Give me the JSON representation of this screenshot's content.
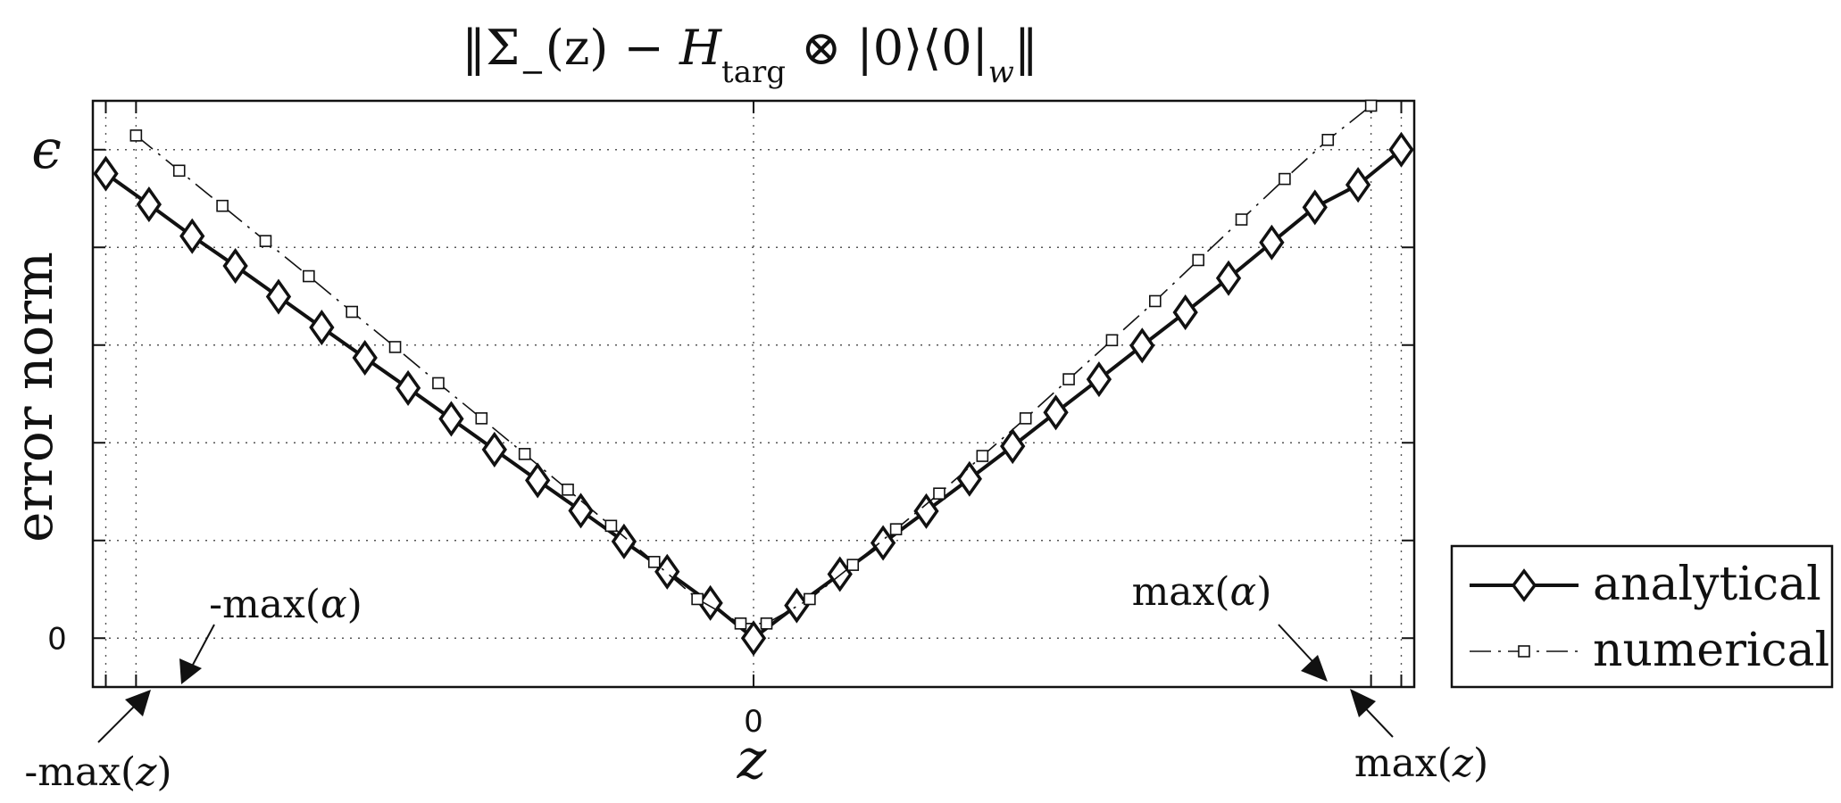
{
  "chart_data": {
    "type": "line",
    "title": "‖Σ₋(z) − H_targ ⊗ |0⟩⟨0|_w‖",
    "title_parts": {
      "open": "‖Σ",
      "sub_minus": "−",
      "arg": "(z) − ",
      "H": "H",
      "sub_targ": "targ",
      "rest": " ⊗ |0⟩⟨0|",
      "sub_w": "w",
      "close": "‖"
    },
    "xlabel": "z",
    "ylabel": "error norm",
    "xlim": [
      -15.3,
      15.3
    ],
    "ylim": [
      -0.1,
      1.1
    ],
    "grid": true,
    "x_ticks": [
      {
        "value": 0,
        "label": "0"
      }
    ],
    "y_ticks": [
      {
        "value": 0,
        "label": "0"
      },
      {
        "value": 1,
        "label": "ϵ"
      }
    ],
    "x_gridlines": [
      -15,
      -14.3,
      0,
      14.3,
      15
    ],
    "y_gridlines": [
      0,
      0.2,
      0.4,
      0.6,
      0.8,
      1.0
    ],
    "legend": {
      "placement": "right-outside-bottom",
      "entries": [
        "analytical",
        "numerical"
      ]
    },
    "series": [
      {
        "name": "analytical",
        "style": "solid-diamond",
        "x": [
          -15,
          -14,
          -13,
          -12,
          -11,
          -10,
          -9,
          -8,
          -7,
          -6,
          -5,
          -4,
          -3,
          -2,
          -1,
          0,
          1,
          2,
          3,
          4,
          5,
          6,
          7,
          8,
          9,
          10,
          11,
          12,
          13,
          14,
          15
        ],
        "y": [
          0.951,
          0.888,
          0.823,
          0.762,
          0.699,
          0.636,
          0.574,
          0.512,
          0.449,
          0.386,
          0.323,
          0.261,
          0.198,
          0.136,
          0.072,
          0.0,
          0.067,
          0.131,
          0.195,
          0.26,
          0.326,
          0.393,
          0.462,
          0.53,
          0.599,
          0.667,
          0.737,
          0.81,
          0.882,
          0.928,
          1.0
        ]
      },
      {
        "name": "numerical",
        "style": "dashdot-square",
        "x": [
          -14.3,
          -13.3,
          -12.3,
          -11.3,
          -10.3,
          -9.3,
          -8.3,
          -7.3,
          -6.3,
          -5.3,
          -4.3,
          -3.3,
          -2.3,
          -1.3,
          -0.3,
          0.3,
          1.3,
          2.3,
          3.3,
          4.3,
          5.3,
          6.3,
          7.3,
          8.3,
          9.3,
          10.3,
          11.3,
          12.3,
          13.3,
          14.3
        ],
        "y": [
          1.029,
          0.957,
          0.885,
          0.813,
          0.741,
          0.668,
          0.596,
          0.522,
          0.45,
          0.377,
          0.304,
          0.23,
          0.156,
          0.08,
          0.03,
          0.03,
          0.08,
          0.15,
          0.223,
          0.296,
          0.373,
          0.45,
          0.53,
          0.61,
          0.69,
          0.774,
          0.857,
          0.94,
          1.02,
          1.09
        ]
      }
    ],
    "annotations": [
      {
        "id": "neg-max-alpha",
        "text": "-max(α)",
        "prefix": "-max(",
        "sym": "α",
        "suffix": ")",
        "points_to_x": -14.3
      },
      {
        "id": "max-alpha",
        "text": "max(α)",
        "prefix": "max(",
        "sym": "α",
        "suffix": ")",
        "points_to_x": 14.3
      },
      {
        "id": "neg-max-z",
        "text": "-max(z)",
        "prefix": "-max(",
        "sym": "z",
        "suffix": ")",
        "points_to_x": -15
      },
      {
        "id": "max-z",
        "text": "max(z)",
        "prefix": "max(",
        "sym": "z",
        "suffix": ")",
        "points_to_x": 15
      }
    ]
  }
}
